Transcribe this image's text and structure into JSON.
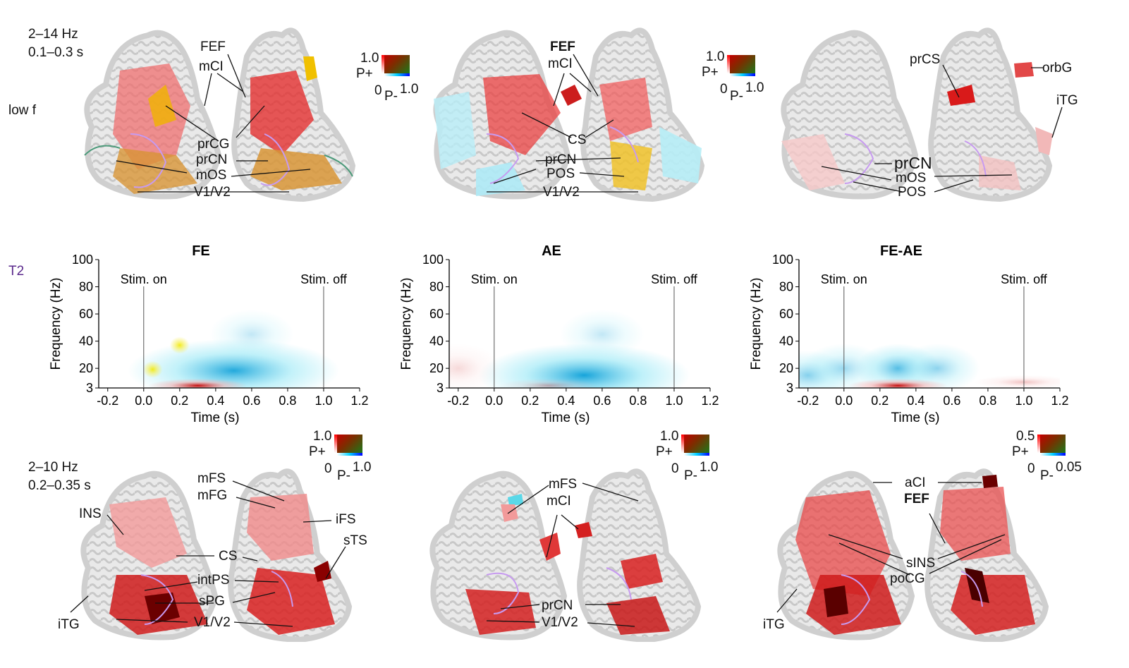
{
  "row_labels": {
    "top_cond": [
      "2–14 Hz",
      "0.1–0.3 s"
    ],
    "low_f": "low f",
    "t2": "T2",
    "bottom_cond": [
      "2–10 Hz",
      "0.2–0.35 s"
    ]
  },
  "colorbars": {
    "top_left": {
      "max": "1.0",
      "zero": "0",
      "p_plus": "P+",
      "p_minus": "P-",
      "right": "1.0"
    },
    "top_mid": {
      "max": "1.0",
      "zero": "0",
      "p_plus": "P+",
      "p_minus": "P-",
      "right": "1.0"
    },
    "bot_left": {
      "max": "1.0",
      "zero": "0",
      "p_plus": "P+",
      "p_minus": "P-",
      "right": "1.0"
    },
    "bot_mid": {
      "max": "1.0",
      "zero": "0",
      "p_plus": "P+",
      "p_minus": "P-",
      "right": "1.0"
    },
    "bot_right": {
      "max": "0.5",
      "zero": "0",
      "p_plus": "P+",
      "p_minus": "P-",
      "right": "0.05"
    }
  },
  "brain_labels": {
    "top_left": [
      "FEF",
      "mCI",
      "prCG",
      "prCN",
      "mOS",
      "V1/V2"
    ],
    "top_mid": [
      "FEF",
      "mCI",
      "CS",
      "prCN",
      "POS",
      "V1/V2"
    ],
    "top_right": [
      "prCS",
      "orbG",
      "iTG",
      "prCN",
      "mOS",
      "POS"
    ],
    "bot_left": [
      "mFS",
      "mFG",
      "INS",
      "iFS",
      "sTS",
      "CS",
      "intPS",
      "sPG",
      "iTG",
      "V1/V2"
    ],
    "bot_mid": [
      "mFS",
      "mCI",
      "prCN",
      "V1/V2"
    ],
    "bot_right": [
      "aCI",
      "FEF",
      "sINS",
      "poCG",
      "iTG"
    ]
  },
  "chart_data": [
    {
      "type": "heatmap",
      "title": "FE",
      "xlabel": "Time (s)",
      "ylabel": "Frequency (Hz)",
      "xticks": [
        "-0.2",
        "0.0",
        "0.2",
        "0.4",
        "0.6",
        "0.8",
        "1.0",
        "1.2"
      ],
      "yticks": [
        "3",
        "20",
        "40",
        "60",
        "80",
        "100"
      ],
      "xlim": [
        -0.25,
        1.2
      ],
      "ylim": [
        3,
        100
      ],
      "annotations": [
        {
          "text": "Stim. on",
          "x": 0.0
        },
        {
          "text": "Stim. off",
          "x": 1.0
        }
      ],
      "blobs": [
        {
          "sign": "negative",
          "t_center": 0.5,
          "f_center": 18,
          "strength": 0.9
        },
        {
          "sign": "negative",
          "t_center": 0.6,
          "f_center": 45,
          "strength": 0.25
        },
        {
          "sign": "positive",
          "t_center": 0.3,
          "f_center": 5,
          "strength": 0.95
        },
        {
          "sign": "yellow",
          "t_center": 0.05,
          "f_center": 19,
          "strength": 0.9
        },
        {
          "sign": "yellow",
          "t_center": 0.2,
          "f_center": 37,
          "strength": 0.9
        }
      ]
    },
    {
      "type": "heatmap",
      "title": "AE",
      "xlabel": "Time (s)",
      "ylabel": "Frequency (Hz)",
      "xticks": [
        "-0.2",
        "0.0",
        "0.2",
        "0.4",
        "0.6",
        "0.8",
        "1.0",
        "1.2"
      ],
      "yticks": [
        "3",
        "20",
        "40",
        "60",
        "80",
        "100"
      ],
      "xlim": [
        -0.25,
        1.2
      ],
      "ylim": [
        3,
        100
      ],
      "annotations": [
        {
          "text": "Stim. on",
          "x": 0.0
        },
        {
          "text": "Stim. off",
          "x": 1.0
        }
      ],
      "blobs": [
        {
          "sign": "negative",
          "t_center": 0.5,
          "f_center": 14,
          "strength": 0.95
        },
        {
          "sign": "negative",
          "t_center": 0.6,
          "f_center": 45,
          "strength": 0.25
        },
        {
          "sign": "positive",
          "t_center": 0.3,
          "f_center": 5,
          "strength": 0.3
        },
        {
          "sign": "positive",
          "t_center": -0.2,
          "f_center": 20,
          "strength": 0.15
        }
      ]
    },
    {
      "type": "heatmap",
      "title": "FE-AE",
      "xlabel": "Time (s)",
      "ylabel": "Frequency (Hz)",
      "xticks": [
        "-0.2",
        "0.0",
        "0.2",
        "0.4",
        "0.6",
        "0.8",
        "1.0",
        "1.2"
      ],
      "yticks": [
        "3",
        "20",
        "40",
        "60",
        "80",
        "100"
      ],
      "xlim": [
        -0.25,
        1.2
      ],
      "ylim": [
        3,
        100
      ],
      "annotations": [
        {
          "text": "Stim. on",
          "x": 0.0
        },
        {
          "text": "Stim. off",
          "x": 1.0
        }
      ],
      "blobs": [
        {
          "sign": "negative",
          "t_center": -0.2,
          "f_center": 14,
          "strength": 0.5
        },
        {
          "sign": "negative",
          "t_center": 0.0,
          "f_center": 20,
          "strength": 0.4
        },
        {
          "sign": "negative",
          "t_center": 0.3,
          "f_center": 20,
          "strength": 0.7
        },
        {
          "sign": "negative",
          "t_center": 0.52,
          "f_center": 20,
          "strength": 0.45
        },
        {
          "sign": "positive",
          "t_center": 0.3,
          "f_center": 5,
          "strength": 0.95
        },
        {
          "sign": "positive",
          "t_center": 1.0,
          "f_center": 8,
          "strength": 0.25
        }
      ]
    }
  ]
}
